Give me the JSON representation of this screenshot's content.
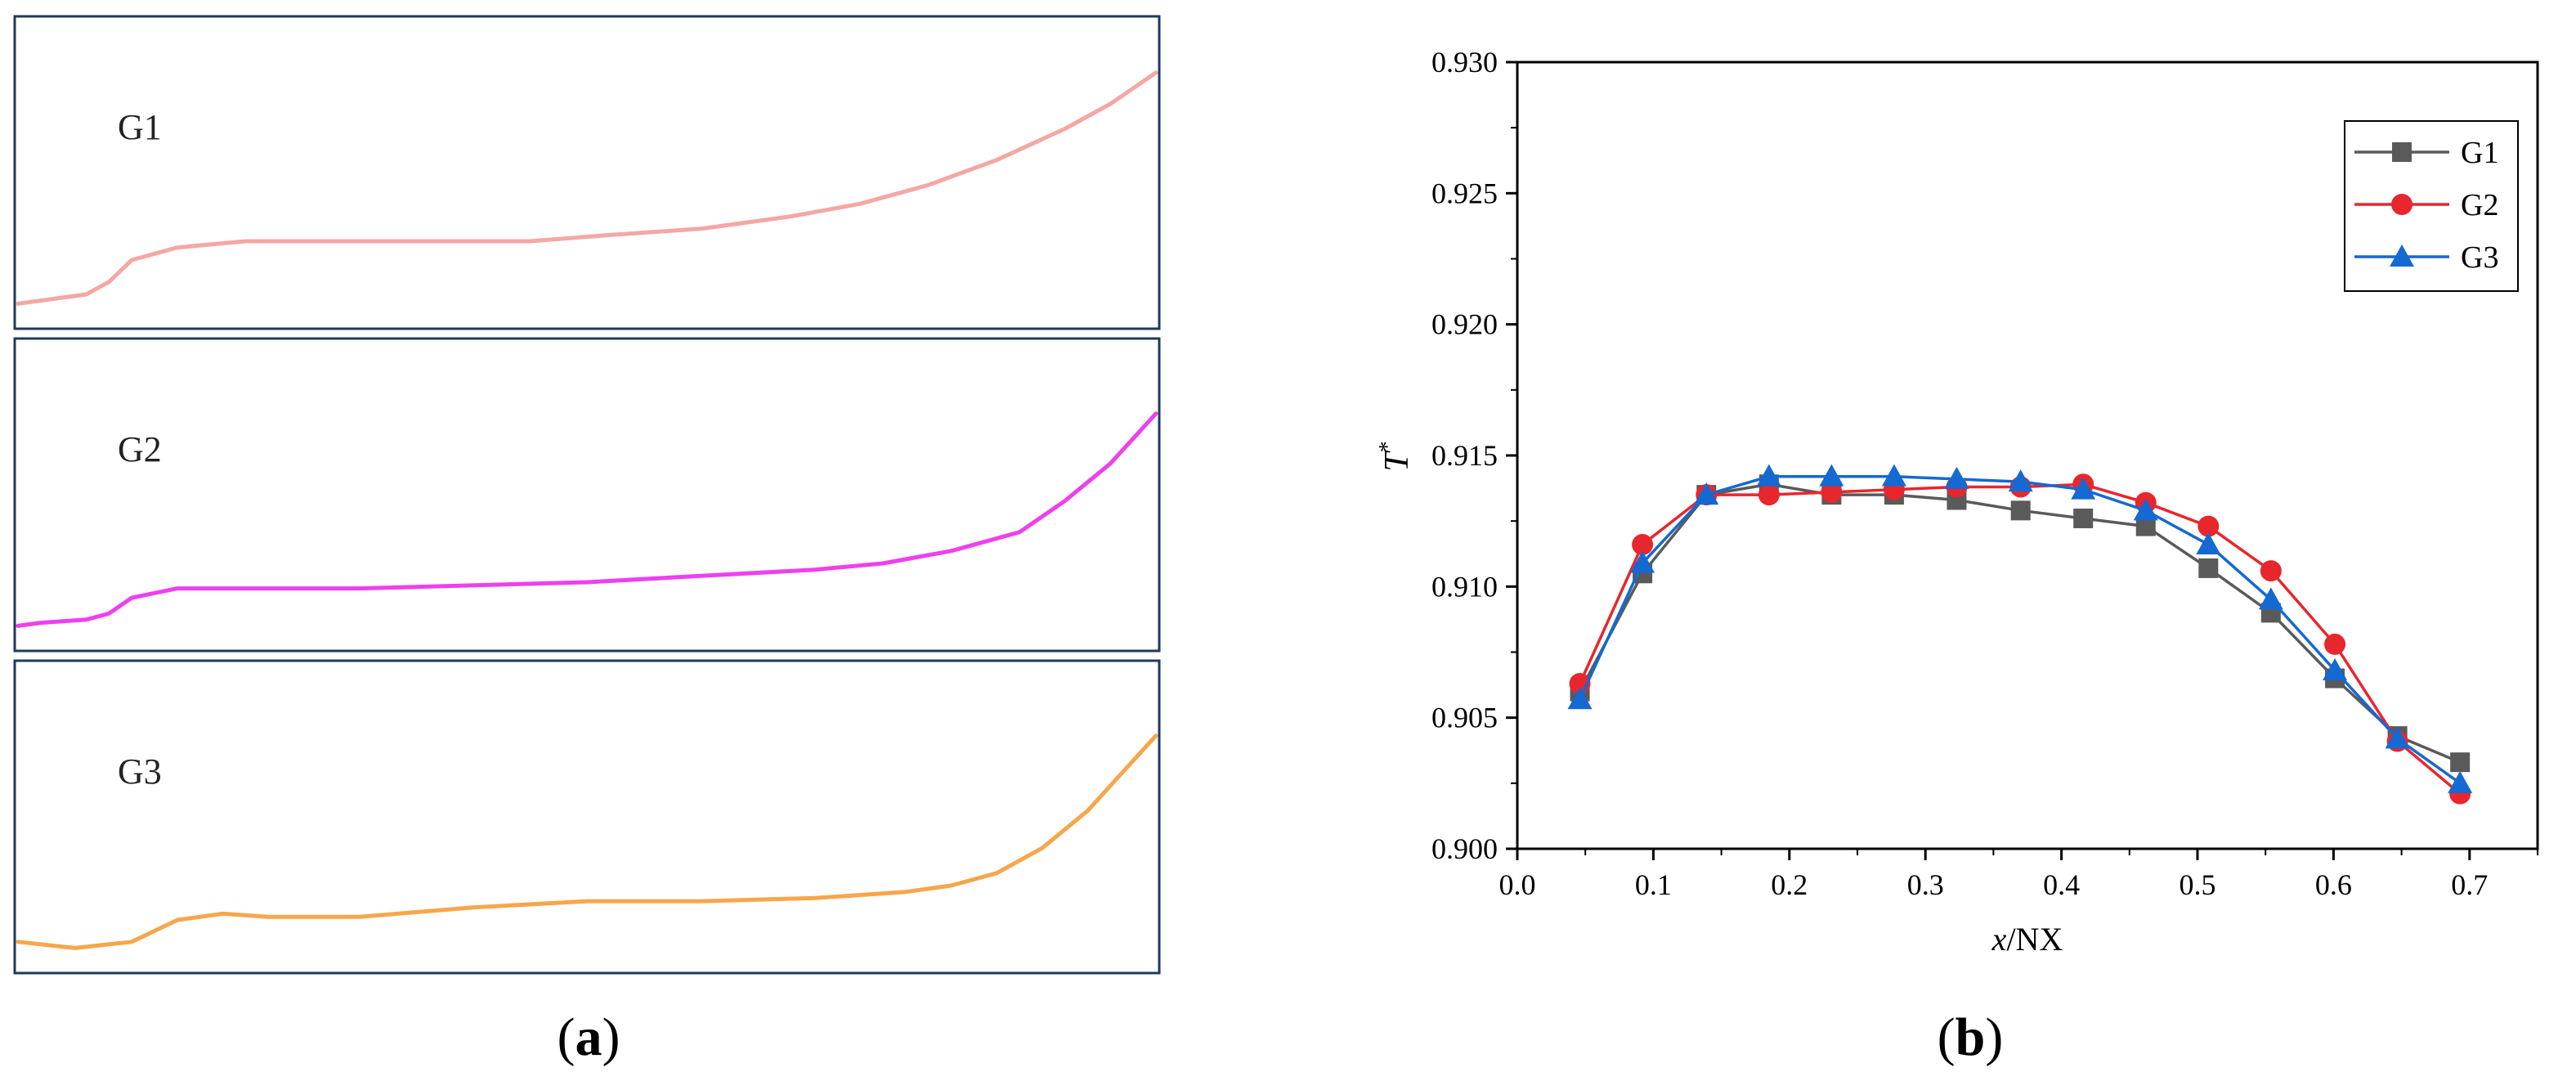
{
  "panel_a": {
    "caption_letter": "a",
    "panels": [
      {
        "label": "G1",
        "color": "#f4a7a3",
        "curve": [
          [
            0,
            0.92
          ],
          [
            0.02,
            0.91
          ],
          [
            0.06,
            0.89
          ],
          [
            0.08,
            0.85
          ],
          [
            0.1,
            0.78
          ],
          [
            0.14,
            0.74
          ],
          [
            0.2,
            0.72
          ],
          [
            0.3,
            0.72
          ],
          [
            0.45,
            0.72
          ],
          [
            0.52,
            0.7
          ],
          [
            0.6,
            0.68
          ],
          [
            0.68,
            0.64
          ],
          [
            0.74,
            0.6
          ],
          [
            0.8,
            0.54
          ],
          [
            0.86,
            0.46
          ],
          [
            0.92,
            0.36
          ],
          [
            0.96,
            0.28
          ],
          [
            1.0,
            0.18
          ]
        ]
      },
      {
        "label": "G2",
        "color": "#ee40ee",
        "curve": [
          [
            0,
            0.92
          ],
          [
            0.02,
            0.91
          ],
          [
            0.06,
            0.9
          ],
          [
            0.08,
            0.88
          ],
          [
            0.1,
            0.83
          ],
          [
            0.14,
            0.8
          ],
          [
            0.2,
            0.8
          ],
          [
            0.3,
            0.8
          ],
          [
            0.5,
            0.78
          ],
          [
            0.6,
            0.76
          ],
          [
            0.7,
            0.74
          ],
          [
            0.76,
            0.72
          ],
          [
            0.82,
            0.68
          ],
          [
            0.88,
            0.62
          ],
          [
            0.92,
            0.52
          ],
          [
            0.96,
            0.4
          ],
          [
            1.0,
            0.24
          ]
        ]
      },
      {
        "label": "G3",
        "color": "#f7a64b",
        "curve": [
          [
            0,
            0.9
          ],
          [
            0.05,
            0.92
          ],
          [
            0.1,
            0.9
          ],
          [
            0.14,
            0.83
          ],
          [
            0.18,
            0.81
          ],
          [
            0.22,
            0.82
          ],
          [
            0.3,
            0.82
          ],
          [
            0.4,
            0.79
          ],
          [
            0.5,
            0.77
          ],
          [
            0.6,
            0.77
          ],
          [
            0.7,
            0.76
          ],
          [
            0.78,
            0.74
          ],
          [
            0.82,
            0.72
          ],
          [
            0.86,
            0.68
          ],
          [
            0.9,
            0.6
          ],
          [
            0.94,
            0.48
          ],
          [
            0.97,
            0.36
          ],
          [
            1.0,
            0.24
          ]
        ]
      }
    ]
  },
  "panel_b": {
    "caption_letter": "b",
    "chart_data": {
      "type": "line",
      "xlabel_italic": "x",
      "xlabel_rest": "/NX",
      "ylabel_main": "T",
      "ylabel_sup": "*",
      "xlim": [
        0.0,
        0.75
      ],
      "ylim": [
        0.9,
        0.93
      ],
      "x_ticks": [
        "0.0",
        "0.1",
        "0.2",
        "0.3",
        "0.4",
        "0.5",
        "0.6",
        "0.7"
      ],
      "y_ticks": [
        "0.900",
        "0.905",
        "0.910",
        "0.915",
        "0.920",
        "0.925",
        "0.930"
      ],
      "legend_position": "top-right",
      "x": [
        0.046,
        0.092,
        0.139,
        0.185,
        0.231,
        0.277,
        0.323,
        0.37,
        0.416,
        0.462,
        0.508,
        0.554,
        0.601,
        0.647,
        0.693
      ],
      "series": [
        {
          "name": "G1",
          "color": "#5a5a5a",
          "marker": "square",
          "values": [
            0.906,
            0.9105,
            0.9135,
            0.9139,
            0.9135,
            0.9135,
            0.9133,
            0.9129,
            0.9126,
            0.9123,
            0.9107,
            0.909,
            0.9065,
            0.9043,
            0.9033
          ]
        },
        {
          "name": "G2",
          "color": "#e8262d",
          "marker": "circle",
          "values": [
            0.9063,
            0.9116,
            0.9135,
            0.9135,
            0.9136,
            0.9137,
            0.9138,
            0.9138,
            0.9139,
            0.9132,
            0.9123,
            0.9106,
            0.9078,
            0.9041,
            0.9021
          ]
        },
        {
          "name": "G3",
          "color": "#1569d2",
          "marker": "triangle",
          "values": [
            0.9057,
            0.9109,
            0.9135,
            0.9142,
            0.9142,
            0.9142,
            0.9141,
            0.914,
            0.9137,
            0.9129,
            0.9116,
            0.9095,
            0.9068,
            0.9042,
            0.9025
          ]
        }
      ]
    }
  }
}
